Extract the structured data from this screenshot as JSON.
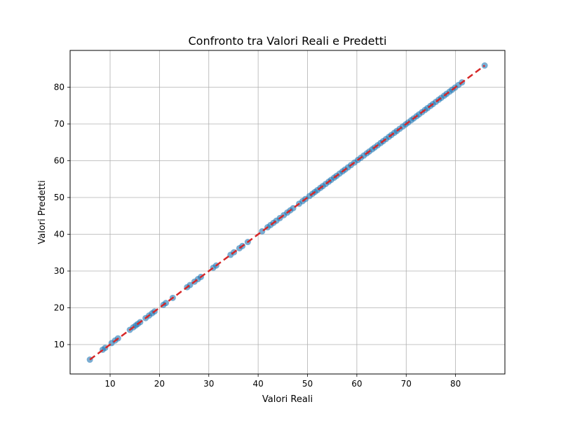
{
  "chart_data": {
    "type": "scatter",
    "title": "Confronto tra Valori Reali e Predetti",
    "xlabel": "Valori Reali",
    "ylabel": "Valori Predetti",
    "xlim": [
      1.9,
      90.0
    ],
    "ylim": [
      2.0,
      90.0
    ],
    "xticks": [
      10,
      20,
      30,
      40,
      50,
      60,
      70,
      80
    ],
    "yticks": [
      10,
      20,
      30,
      40,
      50,
      60,
      70,
      80
    ],
    "grid": true,
    "colors": {
      "points": "#1f77b4",
      "reference_line": "#d62728",
      "grid": "#b0b0b0"
    },
    "reference_line": {
      "style": "dashed",
      "from": [
        5.9,
        5.9
      ],
      "to": [
        85.9,
        85.9
      ]
    },
    "points": [
      [
        5.9,
        5.9
      ],
      [
        8.5,
        8.6
      ],
      [
        9.0,
        9.1
      ],
      [
        10.3,
        10.4
      ],
      [
        11.0,
        11.1
      ],
      [
        11.6,
        11.7
      ],
      [
        14.0,
        14.0
      ],
      [
        14.7,
        14.7
      ],
      [
        15.2,
        15.2
      ],
      [
        15.6,
        15.6
      ],
      [
        16.1,
        16.1
      ],
      [
        17.2,
        17.2
      ],
      [
        17.9,
        17.9
      ],
      [
        18.5,
        18.5
      ],
      [
        19.0,
        19.0
      ],
      [
        20.8,
        20.8
      ],
      [
        21.3,
        21.3
      ],
      [
        22.7,
        22.7
      ],
      [
        25.6,
        25.6
      ],
      [
        26.2,
        26.2
      ],
      [
        27.1,
        27.1
      ],
      [
        27.8,
        27.8
      ],
      [
        28.4,
        28.4
      ],
      [
        30.9,
        30.9
      ],
      [
        31.5,
        31.5
      ],
      [
        34.4,
        34.4
      ],
      [
        35.1,
        35.1
      ],
      [
        36.2,
        36.2
      ],
      [
        36.8,
        36.8
      ],
      [
        37.9,
        37.9
      ],
      [
        40.8,
        40.8
      ],
      [
        41.9,
        41.9
      ],
      [
        42.5,
        42.5
      ],
      [
        43.1,
        43.1
      ],
      [
        43.7,
        43.7
      ],
      [
        44.4,
        44.4
      ],
      [
        45.2,
        45.2
      ],
      [
        45.9,
        45.9
      ],
      [
        46.5,
        46.5
      ],
      [
        47.1,
        47.1
      ],
      [
        48.3,
        48.3
      ],
      [
        49.0,
        49.0
      ],
      [
        49.6,
        49.6
      ],
      [
        50.4,
        50.4
      ],
      [
        51.0,
        51.0
      ],
      [
        51.5,
        51.5
      ],
      [
        52.0,
        52.0
      ],
      [
        52.6,
        52.6
      ],
      [
        53.1,
        53.1
      ],
      [
        53.7,
        53.7
      ],
      [
        54.3,
        54.3
      ],
      [
        54.8,
        54.8
      ],
      [
        55.4,
        55.4
      ],
      [
        55.9,
        55.9
      ],
      [
        56.5,
        56.5
      ],
      [
        57.1,
        57.1
      ],
      [
        57.6,
        57.6
      ],
      [
        58.2,
        58.2
      ],
      [
        58.8,
        58.8
      ],
      [
        59.5,
        59.5
      ],
      [
        60.2,
        60.2
      ],
      [
        60.8,
        60.8
      ],
      [
        61.4,
        61.4
      ],
      [
        62.0,
        62.0
      ],
      [
        62.5,
        62.5
      ],
      [
        63.1,
        63.1
      ],
      [
        63.6,
        63.6
      ],
      [
        64.2,
        64.2
      ],
      [
        64.8,
        64.8
      ],
      [
        65.3,
        65.3
      ],
      [
        65.9,
        65.9
      ],
      [
        66.5,
        66.5
      ],
      [
        67.0,
        67.0
      ],
      [
        67.6,
        67.6
      ],
      [
        68.1,
        68.1
      ],
      [
        68.7,
        68.7
      ],
      [
        69.3,
        69.3
      ],
      [
        69.9,
        69.9
      ],
      [
        70.4,
        70.4
      ],
      [
        71.0,
        71.0
      ],
      [
        71.5,
        71.5
      ],
      [
        72.1,
        72.1
      ],
      [
        72.6,
        72.6
      ],
      [
        73.2,
        73.2
      ],
      [
        73.8,
        73.8
      ],
      [
        74.3,
        74.3
      ],
      [
        74.9,
        74.9
      ],
      [
        75.4,
        75.4
      ],
      [
        76.0,
        76.0
      ],
      [
        76.6,
        76.6
      ],
      [
        77.1,
        77.1
      ],
      [
        77.7,
        77.7
      ],
      [
        78.2,
        78.2
      ],
      [
        78.8,
        78.8
      ],
      [
        79.3,
        79.3
      ],
      [
        79.9,
        79.9
      ],
      [
        80.6,
        80.6
      ],
      [
        81.3,
        81.3
      ],
      [
        85.9,
        85.9
      ]
    ]
  }
}
